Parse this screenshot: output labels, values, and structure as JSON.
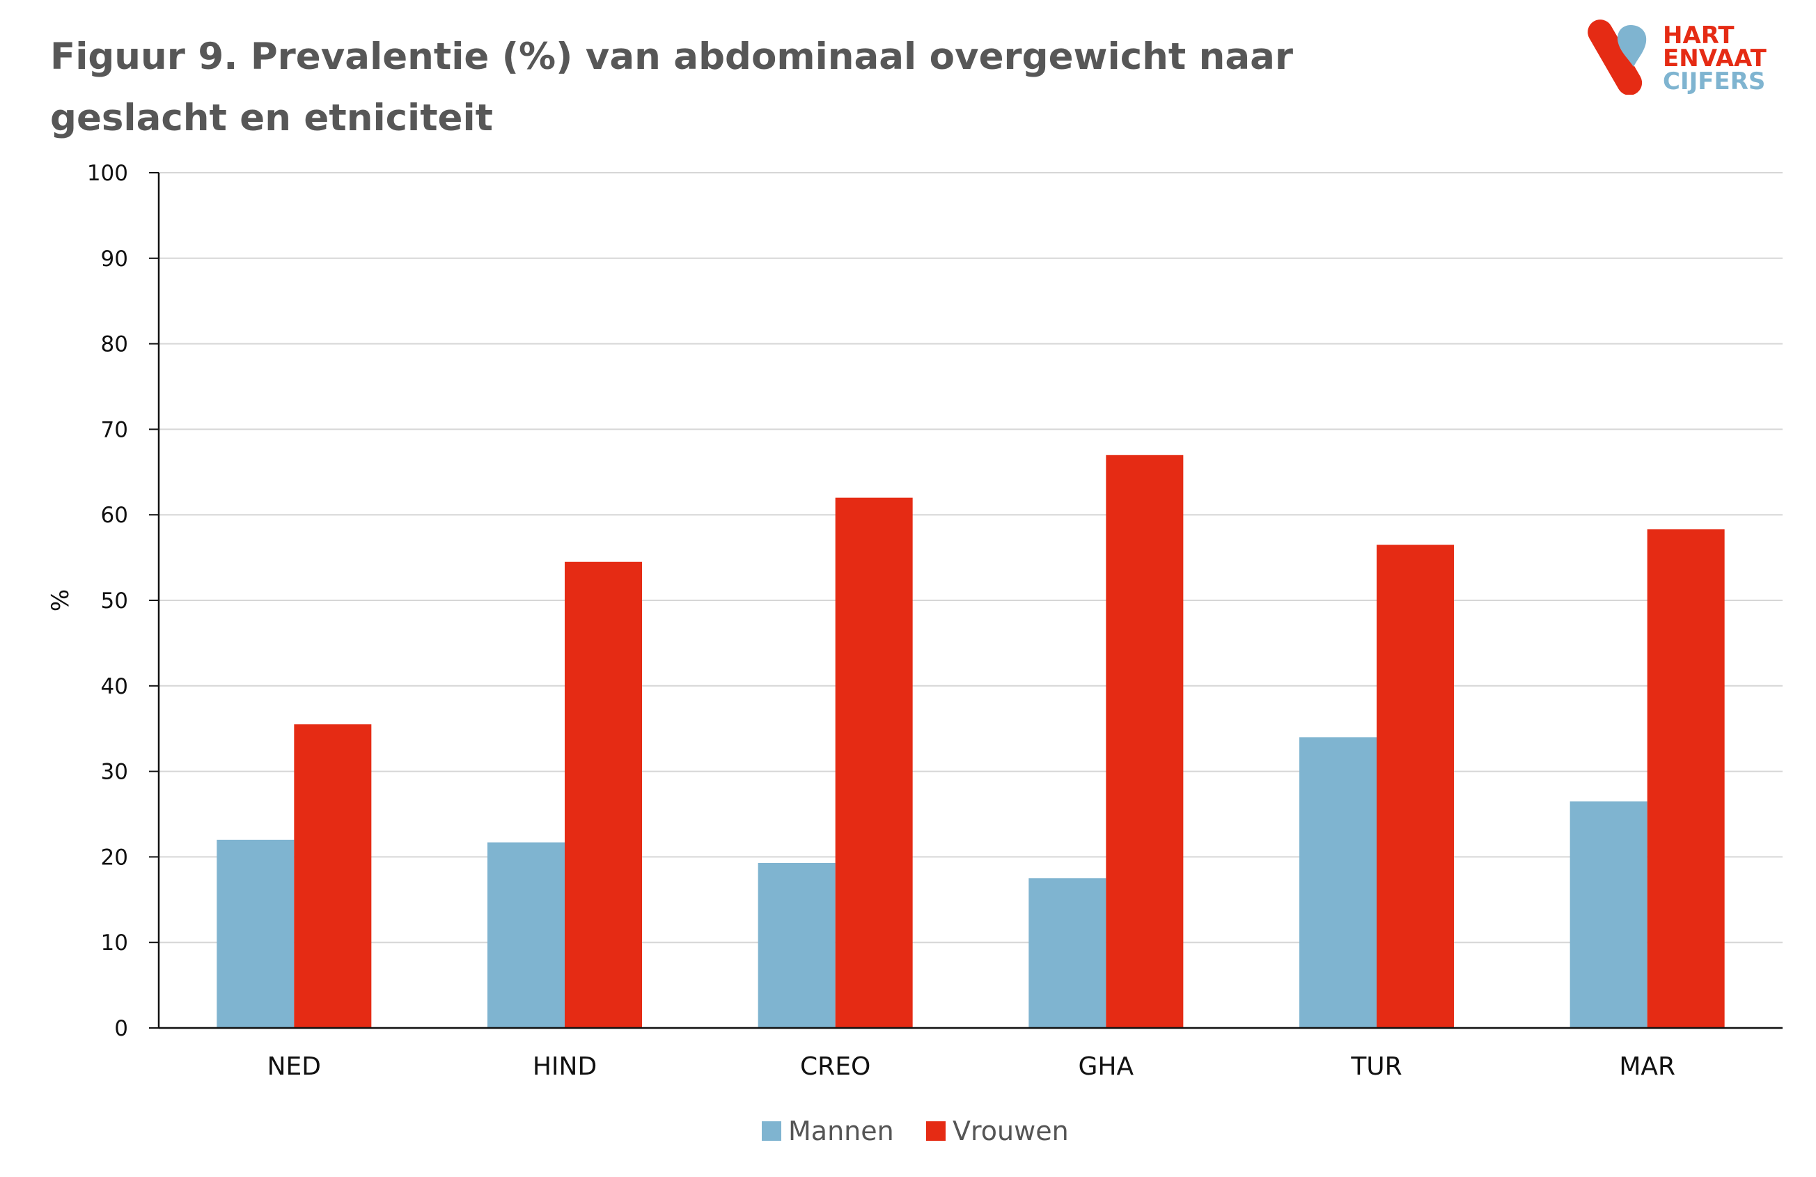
{
  "chart_data": {
    "type": "bar",
    "title": "Figuur 9. Prevalentie (%) van  abdominaal overgewicht naar geslacht en etniciteit",
    "xlabel": "",
    "ylabel": "%",
    "ylim": [
      0,
      100
    ],
    "yticks": [
      0,
      10,
      20,
      30,
      40,
      50,
      60,
      70,
      80,
      90,
      100
    ],
    "grid": true,
    "legend_position": "bottom",
    "categories": [
      "NED",
      "HIND",
      "CREO",
      "GHA",
      "TUR",
      "MAR"
    ],
    "series": [
      {
        "name": "Mannen",
        "color": "#7fb4d0",
        "values": [
          22.0,
          21.7,
          19.3,
          17.5,
          34.0,
          26.5
        ]
      },
      {
        "name": "Vrouwen",
        "color": "#e52b14",
        "values": [
          35.5,
          54.5,
          62.0,
          67.0,
          56.5,
          58.3
        ]
      }
    ]
  },
  "logo": {
    "line1": "HART",
    "line2a": "EN",
    "line2b": "VAAT",
    "line3": "CIJFERS",
    "red": "#e52b14",
    "blue": "#7fb4d0"
  }
}
